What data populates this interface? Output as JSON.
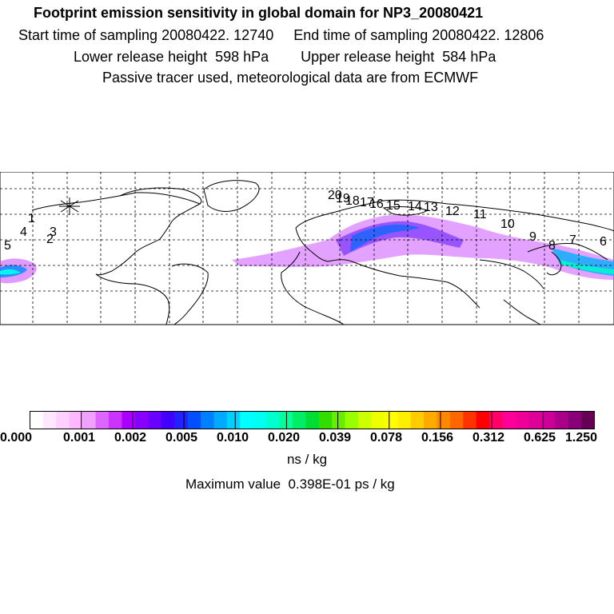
{
  "header": {
    "title": "Footprint emission sensitivity in global domain for NP3_20080421",
    "line2": "Start time of sampling 20080422. 12740     End time of sampling 20080422. 12806",
    "line3": "Lower release height  598 hPa        Upper release height  584 hPa",
    "line4": "Passive tracer used, meteorological data are from ECMWF"
  },
  "map": {
    "trajectory_labels": [
      "20",
      "19",
      "18",
      "17",
      "16",
      "15",
      "14",
      "13",
      "12",
      "11",
      "10",
      "9",
      "8",
      "7",
      "6",
      "5",
      "4",
      "3",
      "2",
      "1"
    ],
    "release_marker": "asterisk"
  },
  "colorbar": {
    "colors": [
      "#ffffff",
      "#ffe8ff",
      "#ffd0ff",
      "#ffb8ff",
      "#f0a0ff",
      "#dd66ff",
      "#cc33ff",
      "#aa00ff",
      "#8800ff",
      "#6a00ff",
      "#4400ff",
      "#2222ff",
      "#0050ff",
      "#0080ff",
      "#00aaff",
      "#00d0ff",
      "#00ffff",
      "#00ffee",
      "#00ffcc",
      "#00ff99",
      "#00ee66",
      "#00dd33",
      "#33dd00",
      "#66ee00",
      "#99ff00",
      "#ccff00",
      "#eeff00",
      "#ffff00",
      "#ffee00",
      "#ffcc00",
      "#ffaa00",
      "#ff8800",
      "#ff6600",
      "#ff3300",
      "#ff0000",
      "#ff0066",
      "#ff0099",
      "#ee0099",
      "#dd0099",
      "#cc0099",
      "#aa0088",
      "#880077",
      "#660055"
    ],
    "tick_labels": [
      "0.000",
      "0.001",
      "0.002",
      "0.005",
      "0.010",
      "0.020",
      "0.039",
      "0.078",
      "0.156",
      "0.312",
      "0.625",
      "1.250"
    ],
    "units": "ns / kg",
    "max_value": "Maximum value  0.398E-01 ps / kg"
  }
}
